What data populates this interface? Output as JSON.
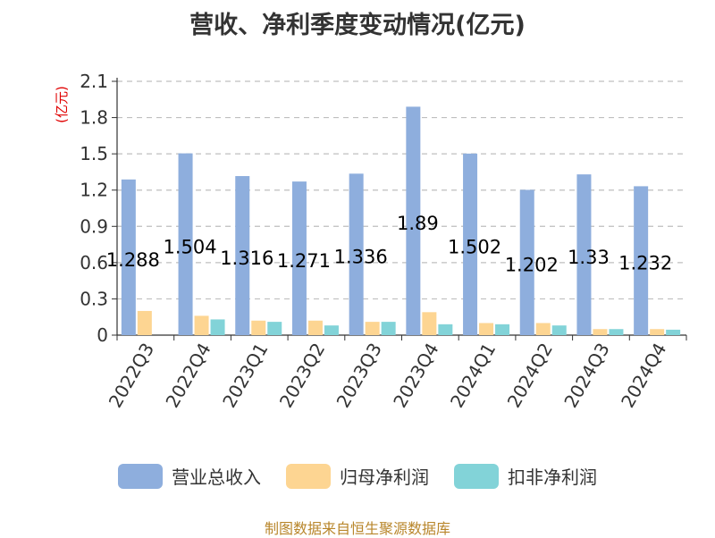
{
  "chart_data": {
    "type": "bar",
    "title": "营收、净利季度变动情况(亿元)",
    "ylabel": "(亿元)",
    "xlabel": "",
    "ylim": [
      0,
      2.1
    ],
    "yticks": [
      "0",
      "0.3",
      "0.6",
      "0.9",
      "1.2",
      "1.5",
      "1.8",
      "2.1"
    ],
    "grid": true,
    "legend_position": "bottom",
    "categories": [
      "2022Q3",
      "2022Q4",
      "2023Q1",
      "2023Q2",
      "2023Q3",
      "2023Q4",
      "2024Q1",
      "2024Q2",
      "2024Q3",
      "2024Q4"
    ],
    "series": [
      {
        "name": "营业总收入",
        "color": "#8eaedd",
        "values": [
          1.288,
          1.504,
          1.316,
          1.271,
          1.336,
          1.89,
          1.502,
          1.202,
          1.33,
          1.232
        ],
        "labels": [
          "1.288",
          "1.504",
          "1.316",
          "1.271",
          "1.336",
          "1.89",
          "1.502",
          "1.202",
          "1.33",
          "1.232"
        ]
      },
      {
        "name": "归母净利润",
        "color": "#fdd592",
        "values": [
          0.2,
          0.16,
          0.12,
          0.12,
          0.11,
          0.19,
          0.1,
          0.1,
          0.05,
          0.05
        ]
      },
      {
        "name": "扣非净利润",
        "color": "#82d3d8",
        "values": [
          0,
          0.13,
          0.11,
          0.08,
          0.11,
          0.09,
          0.09,
          0.08,
          0.05,
          0.045
        ]
      }
    ],
    "source": "制图数据来自恒生聚源数据库"
  }
}
